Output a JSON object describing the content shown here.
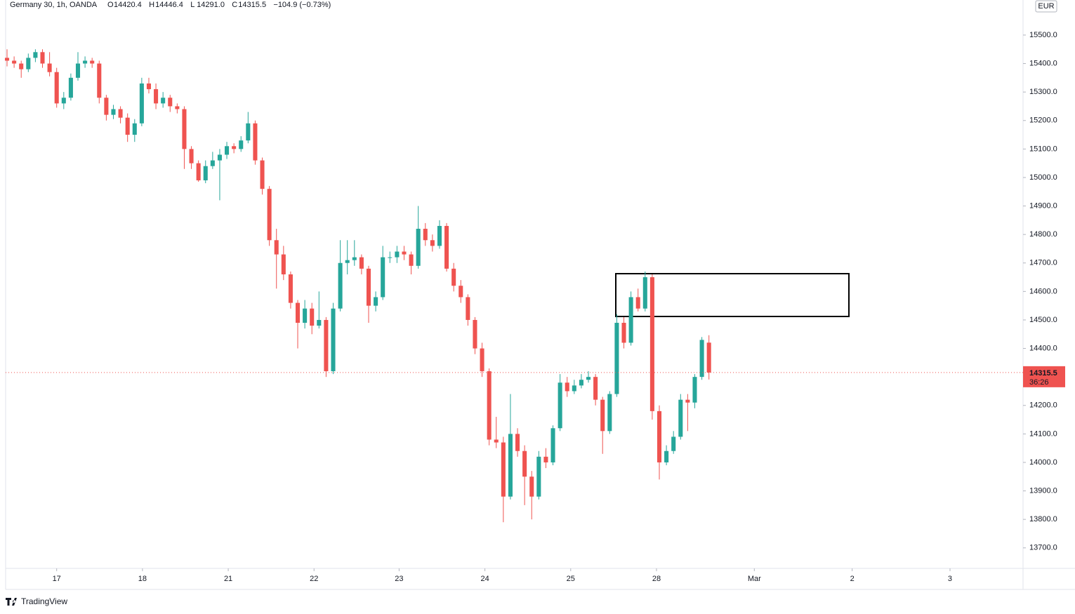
{
  "chart_data": {
    "type": "candlestick",
    "header": {
      "symbol": "Germany 30, 1h, OANDA",
      "ohlc": [
        {
          "label": "O",
          "value": "14420.4"
        },
        {
          "label": "H",
          "value": "14446.4"
        },
        {
          "label": "L",
          "value": "14291.0"
        },
        {
          "label": "C",
          "value": "14315.5"
        }
      ],
      "change": "−104.9 (−0.73%)"
    },
    "currency": "EUR",
    "up_color": "#26a69a",
    "down_color": "#ef5350",
    "last_price": 14315.5,
    "countdown": "36:26",
    "ylim": [
      13628,
      15623
    ],
    "yticks": [
      {
        "value": 13700,
        "label": "13700.0"
      },
      {
        "value": 13800,
        "label": "13800.0"
      },
      {
        "value": 13900,
        "label": "13900.0"
      },
      {
        "value": 14000,
        "label": "14000.0"
      },
      {
        "value": 14100,
        "label": "14100.0"
      },
      {
        "value": 14200,
        "label": "14200.0"
      },
      {
        "value": 14300,
        "label": "14300.0"
      },
      {
        "value": 14400,
        "label": "14400.0"
      },
      {
        "value": 14500,
        "label": "14500.0"
      },
      {
        "value": 14600,
        "label": "14600.0"
      },
      {
        "value": 14700,
        "label": "14700.0"
      },
      {
        "value": 14800,
        "label": "14800.0"
      },
      {
        "value": 14900,
        "label": "14900.0"
      },
      {
        "value": 15000,
        "label": "15000.0"
      },
      {
        "value": 15100,
        "label": "15100.0"
      },
      {
        "value": 15200,
        "label": "15200.0"
      },
      {
        "value": 15300,
        "label": "15300.0"
      },
      {
        "value": 15400,
        "label": "15400.0"
      },
      {
        "value": 15500,
        "label": "15500.0"
      }
    ],
    "xlim": [
      -0.2,
      143.3
    ],
    "xticks": [
      {
        "value": 7,
        "label": "17"
      },
      {
        "value": 19.1,
        "label": "18"
      },
      {
        "value": 31.2,
        "label": "21"
      },
      {
        "value": 43.3,
        "label": "22"
      },
      {
        "value": 55.3,
        "label": "23"
      },
      {
        "value": 67.4,
        "label": "24"
      },
      {
        "value": 79.5,
        "label": "25"
      },
      {
        "value": 91.6,
        "label": "28"
      },
      {
        "value": 105.4,
        "label": "Mar"
      },
      {
        "value": 119.2,
        "label": "2"
      },
      {
        "value": 133,
        "label": "3"
      }
    ],
    "candles": [
      [
        15420,
        15450,
        15390,
        15410
      ],
      [
        15410,
        15425,
        15385,
        15400
      ],
      [
        15400,
        15410,
        15350,
        15380
      ],
      [
        15380,
        15435,
        15370,
        15420
      ],
      [
        15420,
        15450,
        15405,
        15440
      ],
      [
        15440,
        15450,
        15385,
        15400
      ],
      [
        15400,
        15440,
        15355,
        15370
      ],
      [
        15370,
        15385,
        15245,
        15260
      ],
      [
        15260,
        15300,
        15240,
        15280
      ],
      [
        15280,
        15365,
        15270,
        15350
      ],
      [
        15350,
        15440,
        15340,
        15400
      ],
      [
        15400,
        15425,
        15385,
        15410
      ],
      [
        15410,
        15420,
        15385,
        15400
      ],
      [
        15400,
        15410,
        15260,
        15280
      ],
      [
        15280,
        15290,
        15200,
        15220
      ],
      [
        15220,
        15255,
        15205,
        15240
      ],
      [
        15240,
        15250,
        15190,
        15210
      ],
      [
        15210,
        15225,
        15125,
        15150
      ],
      [
        15150,
        15205,
        15125,
        15190
      ],
      [
        15190,
        15350,
        15180,
        15330
      ],
      [
        15330,
        15350,
        15295,
        15310
      ],
      [
        15310,
        15330,
        15240,
        15260
      ],
      [
        15260,
        15300,
        15245,
        15280
      ],
      [
        15280,
        15290,
        15230,
        15250
      ],
      [
        15250,
        15260,
        15225,
        15240
      ],
      [
        15240,
        15250,
        15030,
        15100
      ],
      [
        15100,
        15110,
        15030,
        15050
      ],
      [
        15050,
        15060,
        14985,
        14990
      ],
      [
        14990,
        15060,
        14980,
        15040
      ],
      [
        15040,
        15090,
        15030,
        15060
      ],
      [
        15060,
        15100,
        14920,
        15080
      ],
      [
        15080,
        15125,
        15065,
        15110
      ],
      [
        15110,
        15120,
        15085,
        15100
      ],
      [
        15100,
        15145,
        15090,
        15130
      ],
      [
        15130,
        15230,
        15120,
        15190
      ],
      [
        15190,
        15200,
        15045,
        15060
      ],
      [
        15060,
        15070,
        14940,
        14960
      ],
      [
        14960,
        14970,
        14760,
        14780
      ],
      [
        14780,
        14820,
        14610,
        14730
      ],
      [
        14730,
        14760,
        14640,
        14660
      ],
      [
        14660,
        14670,
        14540,
        14560
      ],
      [
        14560,
        14570,
        14400,
        14490
      ],
      [
        14490,
        14570,
        14470,
        14540
      ],
      [
        14540,
        14560,
        14450,
        14480
      ],
      [
        14480,
        14600,
        14470,
        14500
      ],
      [
        14500,
        14510,
        14300,
        14320
      ],
      [
        14320,
        14560,
        14310,
        14540
      ],
      [
        14540,
        14780,
        14530,
        14700
      ],
      [
        14700,
        14780,
        14660,
        14710
      ],
      [
        14710,
        14780,
        14690,
        14720
      ],
      [
        14720,
        14730,
        14660,
        14680
      ],
      [
        14680,
        14690,
        14490,
        14550
      ],
      [
        14550,
        14600,
        14530,
        14580
      ],
      [
        14580,
        14760,
        14570,
        14720
      ],
      [
        14720,
        14740,
        14700,
        14720
      ],
      [
        14720,
        14760,
        14700,
        14740
      ],
      [
        14740,
        14760,
        14710,
        14730
      ],
      [
        14730,
        14740,
        14660,
        14690
      ],
      [
        14690,
        14900,
        14680,
        14820
      ],
      [
        14820,
        14840,
        14760,
        14780
      ],
      [
        14780,
        14800,
        14740,
        14760
      ],
      [
        14760,
        14850,
        14750,
        14830
      ],
      [
        14830,
        14840,
        14670,
        14680
      ],
      [
        14680,
        14700,
        14600,
        14620
      ],
      [
        14620,
        14640,
        14560,
        14580
      ],
      [
        14580,
        14590,
        14480,
        14500
      ],
      [
        14500,
        14510,
        14380,
        14400
      ],
      [
        14400,
        14420,
        14300,
        14320
      ],
      [
        14320,
        14330,
        14060,
        14080
      ],
      [
        14080,
        14160,
        14050,
        14070
      ],
      [
        14070,
        14090,
        13790,
        13880
      ],
      [
        13880,
        14240,
        13870,
        14100
      ],
      [
        14100,
        14120,
        14020,
        14040
      ],
      [
        14040,
        14060,
        13850,
        13950
      ],
      [
        13950,
        13970,
        13800,
        13880
      ],
      [
        13880,
        14040,
        13870,
        14020
      ],
      [
        14020,
        14050,
        13980,
        14000
      ],
      [
        14000,
        14130,
        13990,
        14120
      ],
      [
        14120,
        14310,
        14110,
        14280
      ],
      [
        14280,
        14300,
        14230,
        14250
      ],
      [
        14250,
        14290,
        14240,
        14270
      ],
      [
        14270,
        14310,
        14260,
        14290
      ],
      [
        14290,
        14320,
        14280,
        14300
      ],
      [
        14300,
        14310,
        14200,
        14220
      ],
      [
        14220,
        14230,
        14030,
        14110
      ],
      [
        14110,
        14250,
        14100,
        14240
      ],
      [
        14240,
        14520,
        14230,
        14490
      ],
      [
        14490,
        14510,
        14400,
        14420
      ],
      [
        14420,
        14600,
        14410,
        14580
      ],
      [
        14580,
        14610,
        14530,
        14540
      ],
      [
        14540,
        14670,
        14530,
        14650
      ],
      [
        14650,
        14660,
        14150,
        14180
      ],
      [
        14180,
        14200,
        13940,
        14000
      ],
      [
        14000,
        14060,
        13990,
        14040
      ],
      [
        14040,
        14110,
        14030,
        14090
      ],
      [
        14090,
        14240,
        14080,
        14220
      ],
      [
        14220,
        14240,
        14110,
        14210
      ],
      [
        14210,
        14310,
        14190,
        14300
      ],
      [
        14300,
        14440,
        14290,
        14430
      ],
      [
        14420.4,
        14446.4,
        14291.0,
        14315.5
      ]
    ]
  }
}
